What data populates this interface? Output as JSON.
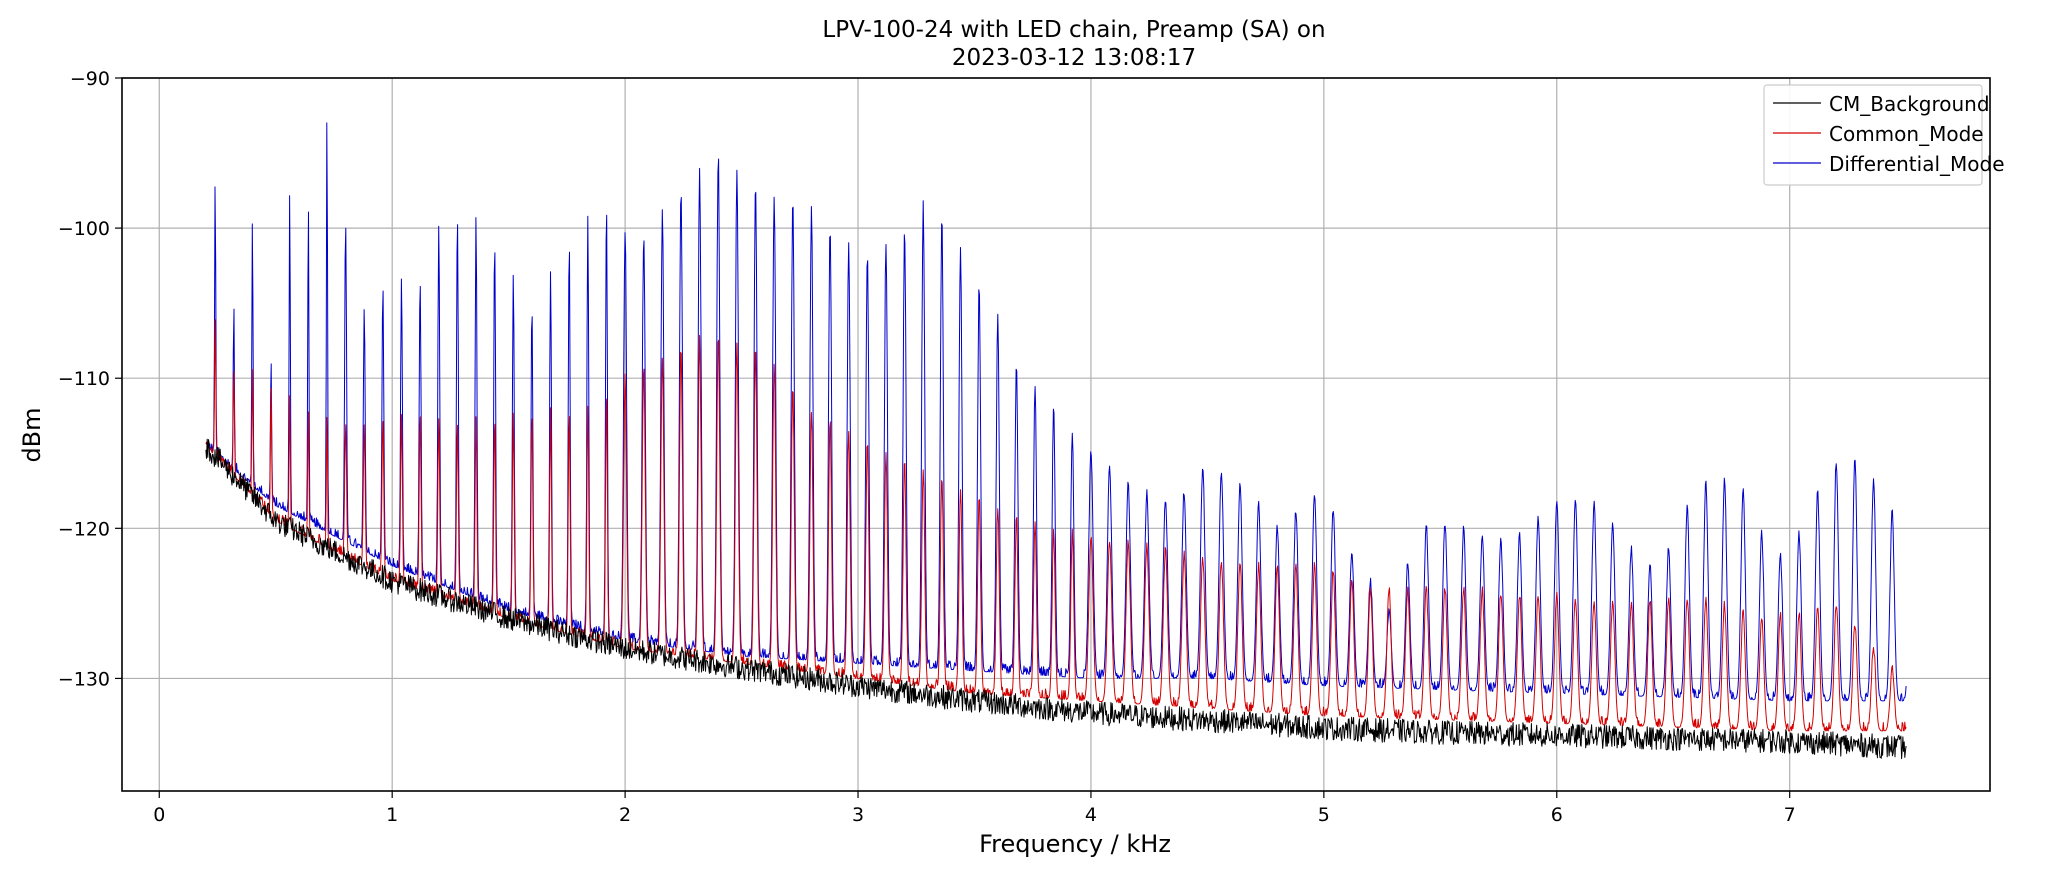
{
  "chart_data": {
    "type": "line",
    "title": "LPV-100-24 with LED chain, Preamp (SA) on",
    "subtitle": "2023-03-12 13:08:17",
    "xlabel": "Frequency / kHz",
    "ylabel": "dBm",
    "xlim": [
      -0.16,
      7.86
    ],
    "ylim": [
      -137.5,
      -90
    ],
    "x_ticks": [
      0,
      1,
      2,
      3,
      4,
      5,
      6,
      7
    ],
    "x_tick_labels": [
      "0",
      "1",
      "2",
      "3",
      "4",
      "5",
      "6",
      "7"
    ],
    "y_ticks": [
      -90,
      -100,
      -110,
      -120,
      -130
    ],
    "y_tick_labels": [
      "−90",
      "−100",
      "−110",
      "−120",
      "−130"
    ],
    "grid": true,
    "legend_position": "top-right",
    "fundamental_khz": 0.08,
    "x_range": [
      0.2,
      7.5
    ],
    "series": [
      {
        "name": "CM_Background",
        "color": "#000000",
        "shape": "noise_floor",
        "floor_points": [
          [
            0.2,
            -114.5
          ],
          [
            0.5,
            -119.5
          ],
          [
            1.0,
            -123.5
          ],
          [
            1.5,
            -126.0
          ],
          [
            2.0,
            -128.0
          ],
          [
            2.5,
            -129.3
          ],
          [
            3.0,
            -130.5
          ],
          [
            3.5,
            -131.5
          ],
          [
            4.0,
            -132.3
          ],
          [
            4.5,
            -132.8
          ],
          [
            5.0,
            -133.3
          ],
          [
            5.5,
            -133.6
          ],
          [
            6.0,
            -133.8
          ],
          [
            7.0,
            -134.2
          ],
          [
            7.5,
            -134.6
          ]
        ]
      },
      {
        "name": "Common_Mode",
        "color": "#d40000",
        "shape": "harmonic_spectrum",
        "floor_points": [
          [
            0.2,
            -114.5
          ],
          [
            0.5,
            -119.5
          ],
          [
            1.0,
            -123.5
          ],
          [
            1.5,
            -126.0
          ],
          [
            2.0,
            -128.0
          ],
          [
            2.5,
            -129.0
          ],
          [
            3.0,
            -130.0
          ],
          [
            3.5,
            -131.0
          ],
          [
            4.0,
            -131.5
          ],
          [
            4.5,
            -132.0
          ],
          [
            5.0,
            -132.5
          ],
          [
            6.0,
            -133.0
          ],
          [
            7.0,
            -133.5
          ],
          [
            7.5,
            -133.5
          ]
        ],
        "peak_envelope": [
          [
            0.24,
            -106
          ],
          [
            0.32,
            -109
          ],
          [
            0.4,
            -109
          ],
          [
            0.56,
            -111
          ],
          [
            0.8,
            -113
          ],
          [
            1.0,
            -112.5
          ],
          [
            1.5,
            -112.5
          ],
          [
            1.8,
            -112
          ],
          [
            2.0,
            -110
          ],
          [
            2.2,
            -108
          ],
          [
            2.4,
            -107
          ],
          [
            2.6,
            -108
          ],
          [
            2.8,
            -112
          ],
          [
            3.0,
            -114
          ],
          [
            3.4,
            -117
          ],
          [
            3.8,
            -120
          ],
          [
            4.2,
            -121
          ],
          [
            4.5,
            -122
          ],
          [
            4.8,
            -122.5
          ],
          [
            5.0,
            -122.5
          ],
          [
            5.2,
            -124
          ],
          [
            5.6,
            -124
          ],
          [
            6.0,
            -124.5
          ],
          [
            6.3,
            -125
          ],
          [
            6.6,
            -124.5
          ],
          [
            6.9,
            -126
          ],
          [
            7.2,
            -125
          ],
          [
            7.5,
            -130.5
          ]
        ]
      },
      {
        "name": "Differential_Mode",
        "color": "#0000cc",
        "shape": "harmonic_spectrum",
        "floor_points": [
          [
            0.2,
            -114.5
          ],
          [
            0.5,
            -118.5
          ],
          [
            1.0,
            -122.5
          ],
          [
            1.5,
            -125.5
          ],
          [
            2.0,
            -127.5
          ],
          [
            2.5,
            -128.5
          ],
          [
            3.0,
            -129.0
          ],
          [
            3.5,
            -129.5
          ],
          [
            4.0,
            -130.0
          ],
          [
            4.5,
            -130.0
          ],
          [
            5.0,
            -130.5
          ],
          [
            6.0,
            -131.0
          ],
          [
            7.0,
            -131.5
          ],
          [
            7.5,
            -131.5
          ]
        ],
        "peak_envelope": [
          [
            0.24,
            -96.5
          ],
          [
            0.32,
            -105
          ],
          [
            0.4,
            -99
          ],
          [
            0.48,
            -108.5
          ],
          [
            0.56,
            -97
          ],
          [
            0.64,
            -97.5
          ],
          [
            0.72,
            -92
          ],
          [
            0.8,
            -99.5
          ],
          [
            0.88,
            -105
          ],
          [
            1.0,
            -103
          ],
          [
            1.1,
            -104
          ],
          [
            1.2,
            -99.5
          ],
          [
            1.3,
            -99
          ],
          [
            1.4,
            -99.5
          ],
          [
            1.6,
            -105
          ],
          [
            1.7,
            -102
          ],
          [
            1.8,
            -100
          ],
          [
            1.9,
            -97.5
          ],
          [
            2.0,
            -100
          ],
          [
            2.1,
            -100.5
          ],
          [
            2.2,
            -98
          ],
          [
            2.3,
            -96.5
          ],
          [
            2.4,
            -95
          ],
          [
            2.5,
            -96.5
          ],
          [
            2.6,
            -97.5
          ],
          [
            2.7,
            -98
          ],
          [
            2.8,
            -98.5
          ],
          [
            2.9,
            -100
          ],
          [
            3.0,
            -102
          ],
          [
            3.1,
            -101
          ],
          [
            3.2,
            -100
          ],
          [
            3.3,
            -98
          ],
          [
            3.4,
            -100
          ],
          [
            3.5,
            -103
          ],
          [
            3.6,
            -106
          ],
          [
            3.7,
            -109.5
          ],
          [
            3.8,
            -111
          ],
          [
            3.9,
            -113
          ],
          [
            4.0,
            -115
          ],
          [
            4.2,
            -117.5
          ],
          [
            4.3,
            -118
          ],
          [
            4.4,
            -117.5
          ],
          [
            4.5,
            -115.5
          ],
          [
            4.6,
            -116.5
          ],
          [
            4.7,
            -118
          ],
          [
            4.8,
            -120
          ],
          [
            5.0,
            -117
          ],
          [
            5.1,
            -121
          ],
          [
            5.3,
            -126
          ],
          [
            5.4,
            -120
          ],
          [
            5.5,
            -119.5
          ],
          [
            5.6,
            -120
          ],
          [
            5.8,
            -121
          ],
          [
            6.0,
            -118
          ],
          [
            6.2,
            -118.5
          ],
          [
            6.3,
            -121
          ],
          [
            6.4,
            -122.5
          ],
          [
            6.5,
            -121
          ],
          [
            6.6,
            -117
          ],
          [
            6.7,
            -116.5
          ],
          [
            6.8,
            -117.5
          ],
          [
            6.9,
            -121
          ],
          [
            7.0,
            -122
          ],
          [
            7.1,
            -118
          ],
          [
            7.2,
            -115.5
          ],
          [
            7.3,
            -115.5
          ],
          [
            7.4,
            -117.5
          ],
          [
            7.5,
            -121
          ]
        ]
      }
    ]
  }
}
